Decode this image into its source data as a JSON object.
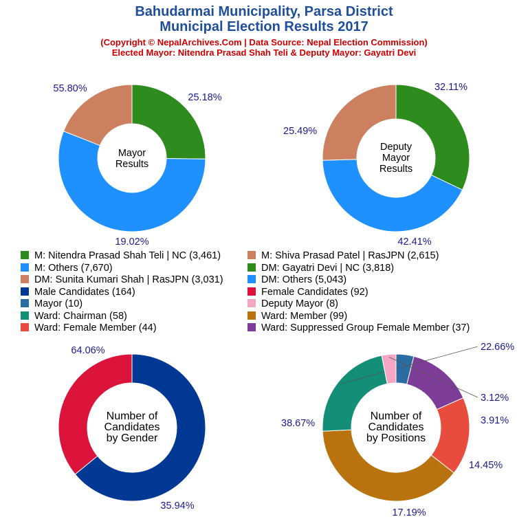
{
  "header": {
    "title_line1": "Bahudarmai Municipality, Parsa District",
    "title_line2": "Municipal Election Results 2017",
    "subtitle_line1": "(Copyright © NepalArchives.Com | Data Source: Nepal Election Commission)",
    "subtitle_line2": "Elected Mayor: Nitendra Prasad Shah Teli & Deputy Mayor: Gayatri Devi"
  },
  "colors": {
    "title": "#1f4e9a",
    "subtitle": "#cc0000",
    "percent_label": "#1a1a8c"
  },
  "legend": [
    {
      "label": "M: Nitendra Prasad Shah Teli | NC (3,461)",
      "color": "#2e8b1e"
    },
    {
      "label": "M: Shiva Prasad Patel | RasJPN (2,615)",
      "color": "#cd8060"
    },
    {
      "label": "M: Others (7,670)",
      "color": "#1e90ff"
    },
    {
      "label": "DM: Gayatri Devi | NC (3,818)",
      "color": "#2e8b1e"
    },
    {
      "label": "DM: Sunita Kumari Shah | RasJPN (3,031)",
      "color": "#cd8060"
    },
    {
      "label": "DM: Others (5,043)",
      "color": "#1e90ff"
    },
    {
      "label": "Male Candidates (164)",
      "color": "#003893"
    },
    {
      "label": "Female Candidates (92)",
      "color": "#dc143c"
    },
    {
      "label": "Mayor (10)",
      "color": "#2b6ca3"
    },
    {
      "label": "Deputy Mayor (8)",
      "color": "#f4a6c4"
    },
    {
      "label": "Ward: Chairman (58)",
      "color": "#148f77"
    },
    {
      "label": "Ward: Member (99)",
      "color": "#b8730f"
    },
    {
      "label": "Ward: Female Member (44)",
      "color": "#e74c3c"
    },
    {
      "label": "Ward: Suppressed Group Female Member (37)",
      "color": "#7d3c98"
    }
  ],
  "chart_data": [
    {
      "type": "pie",
      "donut": true,
      "center_label": [
        "Mayor",
        "Results"
      ],
      "slices": [
        {
          "name": "M: Nitendra Prasad Shah Teli | NC",
          "value": 3461,
          "percent_label": "25.18%",
          "color": "#2e8b1e"
        },
        {
          "name": "M: Others",
          "value": 7670,
          "percent_label": "55.80%",
          "color": "#1e90ff"
        },
        {
          "name": "M: Shiva Prasad Patel | RasJPN",
          "value": 2615,
          "percent_label": "19.02%",
          "color": "#cd8060"
        }
      ]
    },
    {
      "type": "pie",
      "donut": true,
      "center_label": [
        "Deputy",
        "Mayor",
        "Results"
      ],
      "slices": [
        {
          "name": "DM: Gayatri Devi | NC",
          "value": 3818,
          "percent_label": "32.11%",
          "color": "#2e8b1e"
        },
        {
          "name": "DM: Others",
          "value": 5043,
          "percent_label": "42.41%",
          "color": "#1e90ff"
        },
        {
          "name": "DM: Sunita Kumari Shah | RasJPN",
          "value": 3031,
          "percent_label": "25.49%",
          "color": "#cd8060"
        }
      ]
    },
    {
      "type": "pie",
      "donut": true,
      "center_label": [
        "Number of",
        "Candidates",
        "by Gender"
      ],
      "slices": [
        {
          "name": "Male Candidates",
          "value": 164,
          "percent_label": "64.06%",
          "color": "#003893"
        },
        {
          "name": "Female Candidates",
          "value": 92,
          "percent_label": "35.94%",
          "color": "#dc143c"
        }
      ]
    },
    {
      "type": "pie",
      "donut": true,
      "center_label": [
        "Number of",
        "Candidates",
        "by Positions"
      ],
      "slices": [
        {
          "name": "Mayor",
          "value": 10,
          "percent_label": "3.91%",
          "color": "#2b6ca3"
        },
        {
          "name": "Ward: Suppressed Group Female Member",
          "value": 37,
          "percent_label": "14.45%",
          "color": "#7d3c98"
        },
        {
          "name": "Ward: Female Member",
          "value": 44,
          "percent_label": "17.19%",
          "color": "#e74c3c"
        },
        {
          "name": "Ward: Member",
          "value": 99,
          "percent_label": "38.67%",
          "color": "#b8730f"
        },
        {
          "name": "Ward: Chairman",
          "value": 58,
          "percent_label": "22.66%",
          "color": "#148f77"
        },
        {
          "name": "Deputy Mayor",
          "value": 8,
          "percent_label": "3.12%",
          "color": "#f4a6c4"
        }
      ]
    }
  ]
}
